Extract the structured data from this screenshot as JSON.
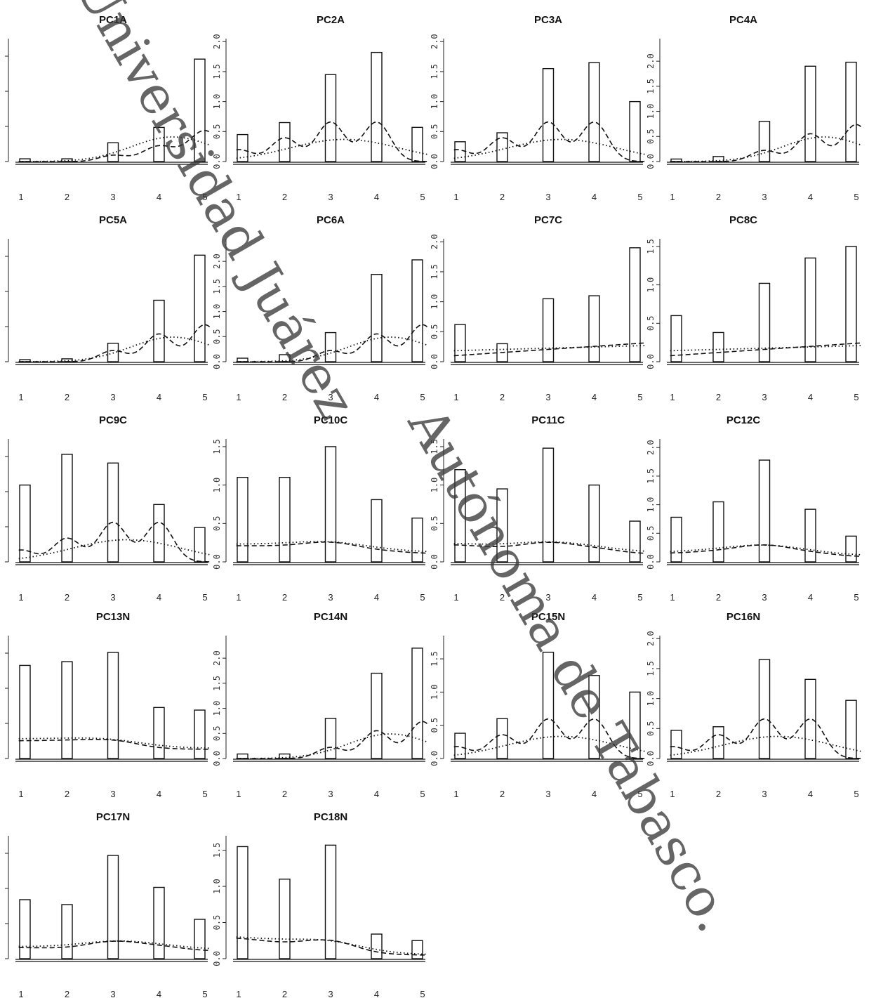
{
  "figure": {
    "watermark": "Universidad Juárez Autónoma de Tabasco.",
    "watermark_line1": "Universidad Juárez",
    "watermark_line2": "Autónoma de Tabasco."
  },
  "chart_data": [
    {
      "type": "bar",
      "title": "PC1A",
      "categories": [
        "1",
        "2",
        "3",
        "4",
        "5"
      ],
      "values": [
        0.08,
        0.08,
        0.55,
        1.0,
        3.0
      ],
      "ylim": [
        0,
        3.6
      ],
      "yticks": [],
      "dashed": "early",
      "dotted": "late"
    },
    {
      "type": "bar",
      "title": "PC2A",
      "categories": [
        "1",
        "2",
        "3",
        "4",
        "5"
      ],
      "values": [
        0.45,
        0.65,
        1.45,
        1.82,
        0.57
      ],
      "ylim": [
        0,
        2.05
      ],
      "yticks": [
        "0.0",
        "0.5",
        "1.0",
        "1.5",
        "2.0"
      ],
      "dashed": "peaks",
      "dotted": "mid"
    },
    {
      "type": "bar",
      "title": "PC3A",
      "categories": [
        "1",
        "2",
        "3",
        "4",
        "5"
      ],
      "values": [
        0.33,
        0.48,
        1.55,
        1.65,
        1.0
      ],
      "ylim": [
        0,
        2.05
      ],
      "yticks": [
        "0.0",
        "0.5",
        "1.0",
        "1.5",
        "2.0"
      ],
      "dashed": "peaks",
      "dotted": "mid"
    },
    {
      "type": "bar",
      "title": "PC4A",
      "categories": [
        "1",
        "2",
        "3",
        "4",
        "5"
      ],
      "values": [
        0.05,
        0.1,
        0.8,
        1.9,
        1.98
      ],
      "ylim": [
        0,
        2.45
      ],
      "yticks": [
        "0.0",
        "0.5",
        "1.0",
        "1.5",
        "2.0"
      ],
      "dashed": "late",
      "dotted": "late"
    },
    {
      "type": "bar",
      "title": "PC5A",
      "categories": [
        "1",
        "2",
        "3",
        "4",
        "5"
      ],
      "values": [
        0.05,
        0.07,
        0.45,
        1.5,
        2.6
      ],
      "ylim": [
        0,
        3.0
      ],
      "yticks": [],
      "dashed": "late",
      "dotted": "late"
    },
    {
      "type": "bar",
      "title": "PC6A",
      "categories": [
        "1",
        "2",
        "3",
        "4",
        "5"
      ],
      "values": [
        0.07,
        0.14,
        0.58,
        1.74,
        2.03
      ],
      "ylim": [
        0,
        2.45
      ],
      "yticks": [
        "0.0",
        "0.5",
        "1.0",
        "1.5",
        "2.0"
      ],
      "dashed": "late",
      "dotted": "late"
    },
    {
      "type": "bar",
      "title": "PC7C",
      "categories": [
        "1",
        "2",
        "3",
        "4",
        "5"
      ],
      "values": [
        0.62,
        0.3,
        1.05,
        1.1,
        1.9
      ],
      "ylim": [
        0,
        2.05
      ],
      "yticks": [
        "0.0",
        "0.5",
        "1.0",
        "1.5",
        "2.0"
      ],
      "dashed": "flat",
      "dotted": "flat"
    },
    {
      "type": "bar",
      "title": "PC8C",
      "categories": [
        "1",
        "2",
        "3",
        "4",
        "5"
      ],
      "values": [
        0.6,
        0.38,
        1.02,
        1.35,
        1.5
      ],
      "ylim": [
        0,
        1.6
      ],
      "yticks": [
        "0.0",
        "0.5",
        "1.0",
        "1.5"
      ],
      "dashed": "flat",
      "dotted": "flat"
    },
    {
      "type": "bar",
      "title": "PC9C",
      "categories": [
        "1",
        "2",
        "3",
        "4",
        "5"
      ],
      "values": [
        1.5,
        2.1,
        1.93,
        1.12,
        0.67
      ],
      "ylim": [
        0,
        2.4
      ],
      "yticks": [],
      "dashed": "peaks",
      "dotted": "mid"
    },
    {
      "type": "bar",
      "title": "PC10C",
      "categories": [
        "1",
        "2",
        "3",
        "4",
        "5"
      ],
      "values": [
        1.1,
        1.1,
        1.5,
        0.81,
        0.57
      ],
      "ylim": [
        0,
        1.6
      ],
      "yticks": [
        "0.0",
        "0.5",
        "1.0",
        "1.5"
      ],
      "dashed": "gentle",
      "dotted": "gentle"
    },
    {
      "type": "bar",
      "title": "PC11C",
      "categories": [
        "1",
        "2",
        "3",
        "4",
        "5"
      ],
      "values": [
        1.2,
        0.95,
        1.48,
        1.0,
        0.53
      ],
      "ylim": [
        0,
        1.6
      ],
      "yticks": [
        "0.0",
        "0.5",
        "1.0",
        "1.5"
      ],
      "dashed": "gentle",
      "dotted": "gentle"
    },
    {
      "type": "bar",
      "title": "PC12C",
      "categories": [
        "1",
        "2",
        "3",
        "4",
        "5"
      ],
      "values": [
        0.78,
        1.05,
        1.78,
        0.92,
        0.45
      ],
      "ylim": [
        0,
        2.15
      ],
      "yticks": [
        "0.0",
        "0.5",
        "1.0",
        "1.5",
        "2.0"
      ],
      "dashed": "gentle",
      "dotted": "gentle"
    },
    {
      "type": "bar",
      "title": "PC13N",
      "categories": [
        "1",
        "2",
        "3",
        "4",
        "5"
      ],
      "values": [
        2.5,
        2.6,
        2.85,
        1.37,
        1.3
      ],
      "ylim": [
        0,
        3.3
      ],
      "yticks": [],
      "dashed": "gentle",
      "dotted": "gentle"
    },
    {
      "type": "bar",
      "title": "PC14N",
      "categories": [
        "1",
        "2",
        "3",
        "4",
        "5"
      ],
      "values": [
        0.09,
        0.09,
        0.8,
        1.7,
        2.2
      ],
      "ylim": [
        0,
        2.45
      ],
      "yticks": [
        "0.0",
        "0.5",
        "1.0",
        "1.5",
        "2.0"
      ],
      "dashed": "late",
      "dotted": "late"
    },
    {
      "type": "bar",
      "title": "PC15N",
      "categories": [
        "1",
        "2",
        "3",
        "4",
        "5"
      ],
      "values": [
        0.38,
        0.6,
        1.6,
        1.25,
        1.0
      ],
      "ylim": [
        0,
        1.85
      ],
      "yticks": [
        "0.0",
        "0.5",
        "1.0",
        "1.5"
      ],
      "dashed": "peaks",
      "dotted": "mid"
    },
    {
      "type": "bar",
      "title": "PC16N",
      "categories": [
        "1",
        "2",
        "3",
        "4",
        "5"
      ],
      "values": [
        0.47,
        0.53,
        1.65,
        1.32,
        0.97
      ],
      "ylim": [
        0,
        2.05
      ],
      "yticks": [
        "0.0",
        "0.5",
        "1.0",
        "1.5",
        "2.0"
      ],
      "dashed": "peaks",
      "dotted": "mid"
    },
    {
      "type": "bar",
      "title": "PC17N",
      "categories": [
        "1",
        "2",
        "3",
        "4",
        "5"
      ],
      "values": [
        1.2,
        1.1,
        2.1,
        1.45,
        0.8
      ],
      "ylim": [
        0,
        2.5
      ],
      "yticks": [],
      "dashed": "gentle",
      "dotted": "gentle"
    },
    {
      "type": "bar",
      "title": "PC18N",
      "categories": [
        "1",
        "2",
        "3",
        "4",
        "5"
      ],
      "values": [
        1.55,
        1.1,
        1.57,
        0.34,
        0.25
      ],
      "ylim": [
        0,
        1.7
      ],
      "yticks": [
        "0.0",
        "0.5",
        "1.0",
        "1.5"
      ],
      "dashed": "gentle",
      "dotted": "gentle"
    }
  ]
}
